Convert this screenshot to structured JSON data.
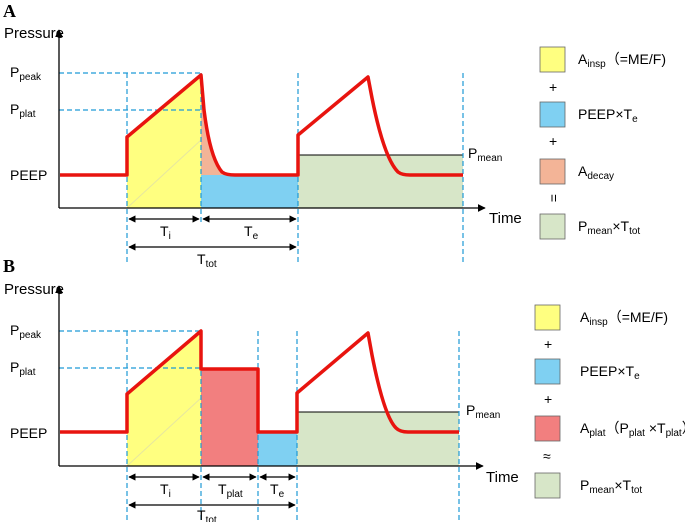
{
  "colors": {
    "pressure_line": "#e8140f",
    "guide_dash": "#1e9ad6",
    "a_insp": "#ffff80",
    "peep_te": "#7fd0f2",
    "a_decay": "#f3b497",
    "a_plat": "#f27f7f",
    "pmean_area": "#d7e6c8"
  },
  "panel_a": {
    "letter": "A",
    "y_axis_title": "Pressure",
    "x_axis_title": "Time",
    "ppeak": {
      "main": "P",
      "sub": "peak"
    },
    "pplat": {
      "main": "P",
      "sub": "plat"
    },
    "peep": "PEEP",
    "pmean": {
      "main": "P",
      "sub": "mean"
    },
    "ti": {
      "main": "T",
      "sub": "i"
    },
    "te": {
      "main": "T",
      "sub": "e"
    },
    "ttot": {
      "main": "T",
      "sub": "tot"
    },
    "legend": {
      "a_insp": {
        "main": "A",
        "sub": "insp",
        "suffix": "（=ME/F)"
      },
      "op1": "+",
      "peep_te": {
        "main": "PEEP×T",
        "sub": "e"
      },
      "op2": "+",
      "a_decay": {
        "main": "A",
        "sub": "decay"
      },
      "op3": "=",
      "pmean_ttot": {
        "main": "P",
        "sub": "mean",
        "mid": "×T",
        "sub2": "tot"
      }
    }
  },
  "panel_b": {
    "letter": "B",
    "y_axis_title": "Pressure",
    "x_axis_title": "Time",
    "ppeak": {
      "main": "P",
      "sub": "peak"
    },
    "pplat": {
      "main": "P",
      "sub": "plat"
    },
    "peep": "PEEP",
    "pmean": {
      "main": "P",
      "sub": "mean"
    },
    "ti": {
      "main": "T",
      "sub": "i"
    },
    "tplat": {
      "main": "T",
      "sub": "plat"
    },
    "te": {
      "main": "T",
      "sub": "e"
    },
    "ttot": {
      "main": "T",
      "sub": "tot"
    },
    "legend": {
      "a_insp": {
        "main": "A",
        "sub": "insp",
        "suffix": "（=ME/F)"
      },
      "op1": "+",
      "peep_te": {
        "main": "PEEP×T",
        "sub": "e"
      },
      "op2": "+",
      "a_plat": {
        "main": "A",
        "sub": "plat",
        "p1": "（P",
        "p1sub": "plat",
        "p2": " ×T",
        "p2sub": "plat",
        "p3": "）"
      },
      "op3": "≈",
      "pmean_ttot": {
        "main": "P",
        "sub": "mean",
        "mid": "×T",
        "sub2": "tot"
      }
    }
  }
}
